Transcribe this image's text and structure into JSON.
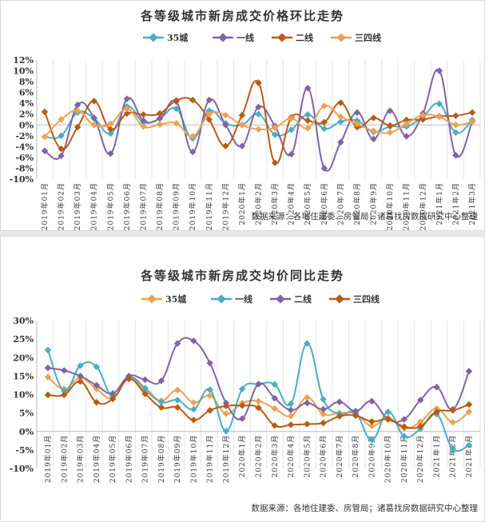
{
  "chart_data": [
    {
      "type": "line",
      "title": "各等级城市新房成交价格环比走势",
      "source": "数据来源：各地住建委、房管局；诸葛找房数据研究中心整理",
      "ylim": [
        -10,
        12
      ],
      "ystep": 2,
      "ytick_suffix": "%",
      "legend_position": "top",
      "categories": [
        "2019年01月",
        "2019年02月",
        "2019年03月",
        "2019年04月",
        "2019年05月",
        "2019年06月",
        "2019年07月",
        "2019年08月",
        "2019年09月",
        "2019年10月",
        "2019年11月",
        "2019年12月",
        "2020年1月",
        "2020年2月",
        "2020年3月",
        "2020年4月",
        "2020年5月",
        "2020年6月",
        "2020年7月",
        "2020年8月",
        "2020年9月",
        "2020年10月",
        "2020年11月",
        "2020年12月",
        "2021年1月",
        "2021年2月",
        "2021年3月"
      ],
      "series": [
        {
          "name": "35城",
          "color": "#4bacc6",
          "values": [
            -2.2,
            -2.0,
            2.3,
            1.2,
            -1.6,
            3.4,
            0.5,
            1.2,
            3.0,
            -2.5,
            2.6,
            0.3,
            0.0,
            2.0,
            -1.8,
            -0.9,
            1.9,
            -0.7,
            0.6,
            0.8,
            -1.3,
            -0.3,
            -0.3,
            1.5,
            3.9,
            -1.4,
            0.9
          ]
        },
        {
          "name": "一线",
          "color": "#8064a2",
          "values": [
            -4.8,
            -5.7,
            3.7,
            1.3,
            -5.3,
            4.8,
            0.8,
            1.2,
            4.3,
            -5.0,
            4.6,
            0.0,
            -3.9,
            3.3,
            -0.2,
            -5.4,
            6.8,
            -8.0,
            -3.2,
            2.3,
            -2.6,
            2.6,
            -2.1,
            2.1,
            10.0,
            -5.6,
            0.6
          ]
        },
        {
          "name": "二线",
          "color": "#b85c12",
          "values": [
            2.4,
            -4.4,
            -0.4,
            4.4,
            -0.8,
            2.1,
            1.9,
            2.1,
            4.5,
            4.6,
            1.0,
            -3.9,
            1.8,
            7.8,
            -7.0,
            1.4,
            0.8,
            0.5,
            4.1,
            -0.4,
            1.3,
            -0.1,
            0.9,
            1.0,
            1.6,
            1.7,
            2.3
          ]
        },
        {
          "name": "三四线",
          "color": "#f0a050",
          "values": [
            -2.2,
            1.0,
            2.6,
            0.0,
            0.2,
            3.0,
            -0.3,
            0.1,
            0.3,
            -2.1,
            2.0,
            1.8,
            0.0,
            -0.8,
            -0.5,
            1.2,
            -0.6,
            3.5,
            1.5,
            0.2,
            -1.1,
            -1.4,
            0.2,
            1.8,
            1.5,
            0.0,
            0.6
          ]
        }
      ]
    },
    {
      "type": "line",
      "title": "各等级城市新房成交均价同比走势",
      "source": "数据来源：各地住建委、房管局；诸葛找房数据研究中心整理",
      "ylim": [
        -10,
        30
      ],
      "ystep": 5,
      "ytick_suffix": "%",
      "legend_position": "top",
      "categories": [
        "2019年01月",
        "2019年02月",
        "2019年03月",
        "2019年04月",
        "2019年05月",
        "2019年06月",
        "2019年07月",
        "2019年08月",
        "2019年09月",
        "2019年10月",
        "2019年11月",
        "2019年12月",
        "2020年1月",
        "2020年2月",
        "2020年3月",
        "2020年4月",
        "2020年5月",
        "2020年6月",
        "2020年7月",
        "2020年8月",
        "2020年9月",
        "2020年10月",
        "2020年11月",
        "2020年12月",
        "2021年1月",
        "2021年2月",
        "2021年3月"
      ],
      "series": [
        {
          "name": "35城",
          "color": "#f0a050",
          "values": [
            14.7,
            11.5,
            14.5,
            11.5,
            9.0,
            14.5,
            11.0,
            8.3,
            11.2,
            7.8,
            9.7,
            4.8,
            7.7,
            8.2,
            6.2,
            4.2,
            9.2,
            4.7,
            5.0,
            4.7,
            1.5,
            3.7,
            0.8,
            2.6,
            6.2,
            2.5,
            5.3
          ]
        },
        {
          "name": "一线",
          "color": "#4bacc6",
          "values": [
            22.0,
            11.0,
            17.8,
            17.5,
            9.5,
            14.7,
            11.7,
            8.0,
            8.5,
            6.0,
            11.3,
            0.1,
            11.5,
            12.8,
            12.7,
            7.5,
            23.8,
            8.7,
            4.7,
            5.0,
            -2.3,
            5.3,
            -1.3,
            0.7,
            4.7,
            -4.7,
            -3.7
          ]
        },
        {
          "name": "二线",
          "color": "#8064a2",
          "values": [
            17.2,
            16.5,
            15.0,
            12.5,
            10.3,
            15.0,
            14.0,
            13.7,
            23.8,
            24.5,
            18.5,
            7.7,
            3.5,
            12.8,
            9.0,
            5.8,
            7.7,
            6.0,
            8.0,
            5.5,
            8.2,
            3.3,
            3.3,
            8.5,
            12.0,
            6.0,
            16.3
          ]
        },
        {
          "name": "三四线",
          "color": "#b85c12",
          "values": [
            9.9,
            9.9,
            13.5,
            7.9,
            8.8,
            14.2,
            10.2,
            6.5,
            6.5,
            3.1,
            5.7,
            6.9,
            7.0,
            6.4,
            1.6,
            1.8,
            2.0,
            2.3,
            4.1,
            4.3,
            2.7,
            3.3,
            1.3,
            1.4,
            5.3,
            5.7,
            7.3
          ]
        }
      ]
    }
  ]
}
